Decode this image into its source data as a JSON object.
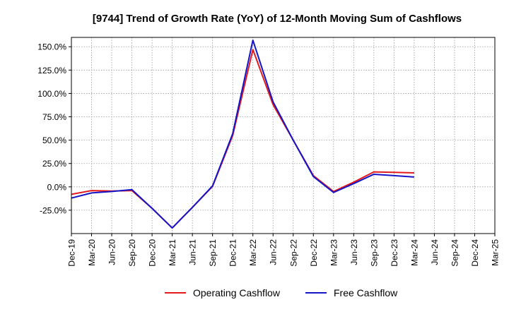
{
  "chart_data": {
    "type": "line",
    "title": "[9744]  Trend of Growth Rate (YoY) of 12-Month Moving Sum of Cashflows",
    "xlabel": "",
    "ylabel": "",
    "x": [
      "Dec-19",
      "Mar-20",
      "Jun-20",
      "Sep-20",
      "Dec-20",
      "Mar-21",
      "Jun-21",
      "Sep-21",
      "Dec-21",
      "Mar-22",
      "Jun-22",
      "Sep-22",
      "Dec-22",
      "Mar-23",
      "Jun-23",
      "Sep-23",
      "Dec-23",
      "Mar-24",
      "Jun-24",
      "Sep-24",
      "Dec-24",
      "Mar-25"
    ],
    "ylim": [
      -50,
      160
    ],
    "yticks": [
      -25,
      0,
      25,
      50,
      75,
      100,
      125,
      150
    ],
    "ytick_labels": [
      "-25.0%",
      "0.0%",
      "25.0%",
      "50.0%",
      "75.0%",
      "100.0%",
      "125.0%",
      "150.0%"
    ],
    "grid": true,
    "legend_position": "bottom-center",
    "series": [
      {
        "name": "Operating Cashflow",
        "color": "#e31a1c",
        "values": [
          -8.0,
          -4.0,
          -4.5,
          -4.0,
          -23.0,
          -44.0,
          -22.0,
          0.5,
          55.0,
          147.0,
          88.0,
          50.0,
          12.0,
          -5.0,
          5.0,
          16.0,
          15.5,
          15.0,
          null,
          null,
          null,
          null
        ]
      },
      {
        "name": "Free Cashflow",
        "color": "#1515c8",
        "values": [
          -12.0,
          -6.5,
          -5.0,
          -3.0,
          -23.0,
          -44.0,
          -22.0,
          1.0,
          57.0,
          157.0,
          91.0,
          50.0,
          11.0,
          -6.0,
          3.5,
          13.5,
          12.0,
          10.5,
          null,
          null,
          null,
          null
        ]
      }
    ]
  }
}
